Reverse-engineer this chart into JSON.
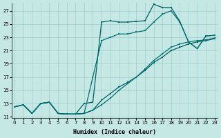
{
  "xlabel": "Humidex (Indice chaleur)",
  "bg_color": "#c5e8e5",
  "grid_color": "#9ecece",
  "line_color1": "#006060",
  "line_color2": "#007070",
  "xlim_min": -0.3,
  "xlim_max": 23.3,
  "ylim_min": 10.8,
  "ylim_max": 28.2,
  "yticks": [
    11,
    13,
    15,
    17,
    19,
    21,
    23,
    25,
    27
  ],
  "xlabel_fontsize": 6,
  "tick_fontsize": 5,
  "linewidth": 0.9,
  "markersize": 2.0,
  "line1_x": [
    0,
    1,
    2,
    3,
    4,
    5,
    6,
    7,
    8,
    9,
    10,
    11,
    12,
    13,
    14,
    15,
    16,
    17,
    18,
    19,
    20,
    21,
    22,
    23
  ],
  "line1_y": [
    12.5,
    12.8,
    11.5,
    13.0,
    13.2,
    11.5,
    11.4,
    11.4,
    13.0,
    13.2,
    25.3,
    25.5,
    25.3,
    25.3,
    25.4,
    25.5,
    28.0,
    27.5,
    27.5,
    25.4,
    22.3,
    21.3,
    23.2,
    23.3
  ],
  "line2_x": [
    0,
    1,
    2,
    3,
    4,
    5,
    6,
    7,
    8,
    9,
    10,
    11,
    12,
    13,
    14,
    15,
    16,
    17,
    18,
    19,
    20,
    21,
    22,
    23
  ],
  "line2_y": [
    12.5,
    12.8,
    11.5,
    13.0,
    13.2,
    11.5,
    11.4,
    11.4,
    11.5,
    17.0,
    22.5,
    23.0,
    23.5,
    23.5,
    23.8,
    24.0,
    25.3,
    26.5,
    27.0,
    25.3,
    22.3,
    21.3,
    23.2,
    23.3
  ],
  "line3_x": [
    0,
    1,
    2,
    3,
    4,
    5,
    6,
    7,
    8,
    9,
    10,
    11,
    12,
    13,
    14,
    15,
    16,
    17,
    18,
    19,
    20,
    21,
    22,
    23
  ],
  "line3_y": [
    12.5,
    12.8,
    11.5,
    13.0,
    13.2,
    11.5,
    11.4,
    11.4,
    11.5,
    12.0,
    13.5,
    14.5,
    15.5,
    16.2,
    17.0,
    18.0,
    19.2,
    20.0,
    21.0,
    21.5,
    22.0,
    22.3,
    22.5,
    22.8
  ],
  "line4_x": [
    0,
    1,
    2,
    3,
    4,
    5,
    6,
    7,
    8,
    9,
    10,
    11,
    12,
    13,
    14,
    15,
    16,
    17,
    18,
    19,
    20,
    21,
    22,
    23
  ],
  "line4_y": [
    12.5,
    12.8,
    11.5,
    13.0,
    13.2,
    11.5,
    11.4,
    11.4,
    11.5,
    12.0,
    12.8,
    13.8,
    15.0,
    16.0,
    17.0,
    18.2,
    19.5,
    20.5,
    21.5,
    22.0,
    22.3,
    22.5,
    22.6,
    22.9
  ]
}
